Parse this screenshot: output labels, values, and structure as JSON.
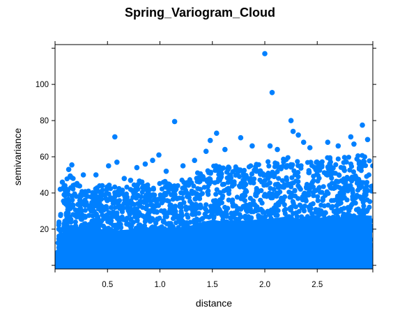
{
  "chart_data": {
    "type": "scatter",
    "title": "Spring_Variogram_Cloud",
    "xlabel": "distance",
    "ylabel": "semivariance",
    "xlim": [
      0.0,
      3.03
    ],
    "ylim": [
      -2.0,
      122.0
    ],
    "x_ticks": [
      0.5,
      1.0,
      1.5,
      2.0,
      2.5
    ],
    "y_ticks": [
      20,
      40,
      60,
      80,
      100
    ],
    "x_tick_labels": [
      "0.5",
      "1.0",
      "1.5",
      "2.0",
      "2.5"
    ],
    "y_tick_labels": [
      "20",
      "40",
      "60",
      "80",
      "100"
    ],
    "grid": false,
    "legend": "none",
    "point_color": "#0080ff",
    "upper_envelope": [
      [
        0.02,
        18
      ],
      [
        0.05,
        40
      ],
      [
        0.1,
        47
      ],
      [
        0.15,
        50
      ],
      [
        0.2,
        48
      ],
      [
        0.3,
        42
      ],
      [
        0.4,
        44
      ],
      [
        0.5,
        45
      ],
      [
        0.6,
        43
      ],
      [
        0.7,
        44
      ],
      [
        0.8,
        47
      ],
      [
        0.9,
        45
      ],
      [
        1.0,
        47
      ],
      [
        1.1,
        46
      ],
      [
        1.2,
        47
      ],
      [
        1.3,
        49
      ],
      [
        1.4,
        53
      ],
      [
        1.5,
        56
      ],
      [
        1.6,
        54
      ],
      [
        1.7,
        55
      ],
      [
        1.8,
        55
      ],
      [
        1.9,
        56
      ],
      [
        2.0,
        57
      ],
      [
        2.1,
        58
      ],
      [
        2.2,
        60
      ],
      [
        2.3,
        58
      ],
      [
        2.4,
        57
      ],
      [
        2.5,
        58
      ],
      [
        2.6,
        60
      ],
      [
        2.7,
        59
      ],
      [
        2.8,
        61
      ],
      [
        2.9,
        62
      ],
      [
        3.0,
        61
      ]
    ],
    "highlight_points": [
      {
        "x": 2.0,
        "y": 117
      },
      {
        "x": 2.07,
        "y": 95.5
      },
      {
        "x": 2.25,
        "y": 80
      },
      {
        "x": 1.14,
        "y": 79.5
      },
      {
        "x": 2.93,
        "y": 77.5
      },
      {
        "x": 2.27,
        "y": 74
      },
      {
        "x": 1.54,
        "y": 73
      },
      {
        "x": 2.32,
        "y": 72
      },
      {
        "x": 2.82,
        "y": 71
      },
      {
        "x": 0.57,
        "y": 71
      },
      {
        "x": 1.77,
        "y": 70.5
      },
      {
        "x": 2.98,
        "y": 69.5
      },
      {
        "x": 1.48,
        "y": 69
      },
      {
        "x": 2.37,
        "y": 68
      },
      {
        "x": 2.6,
        "y": 68
      },
      {
        "x": 2.85,
        "y": 67
      },
      {
        "x": 2.05,
        "y": 66
      },
      {
        "x": 1.88,
        "y": 66
      },
      {
        "x": 1.62,
        "y": 64
      },
      {
        "x": 0.99,
        "y": 61
      },
      {
        "x": 1.44,
        "y": 63
      },
      {
        "x": 2.12,
        "y": 64
      },
      {
        "x": 2.43,
        "y": 65
      },
      {
        "x": 2.7,
        "y": 66
      },
      {
        "x": 0.93,
        "y": 58
      },
      {
        "x": 0.59,
        "y": 57
      },
      {
        "x": 0.16,
        "y": 55.5
      },
      {
        "x": 0.13,
        "y": 53
      },
      {
        "x": 0.78,
        "y": 54
      },
      {
        "x": 0.86,
        "y": 56
      },
      {
        "x": 0.27,
        "y": 50
      },
      {
        "x": 0.39,
        "y": 50
      },
      {
        "x": 0.51,
        "y": 55
      },
      {
        "x": 1.06,
        "y": 52
      },
      {
        "x": 1.22,
        "y": 55
      },
      {
        "x": 1.33,
        "y": 58
      },
      {
        "x": 0.05,
        "y": 42
      },
      {
        "x": 0.07,
        "y": 46
      },
      {
        "x": 0.1,
        "y": 41
      },
      {
        "x": 0.45,
        "y": 44
      },
      {
        "x": 0.66,
        "y": 48
      },
      {
        "x": 0.72,
        "y": 47
      }
    ],
    "ground_noise": {
      "min": 0,
      "max": 3
    }
  }
}
